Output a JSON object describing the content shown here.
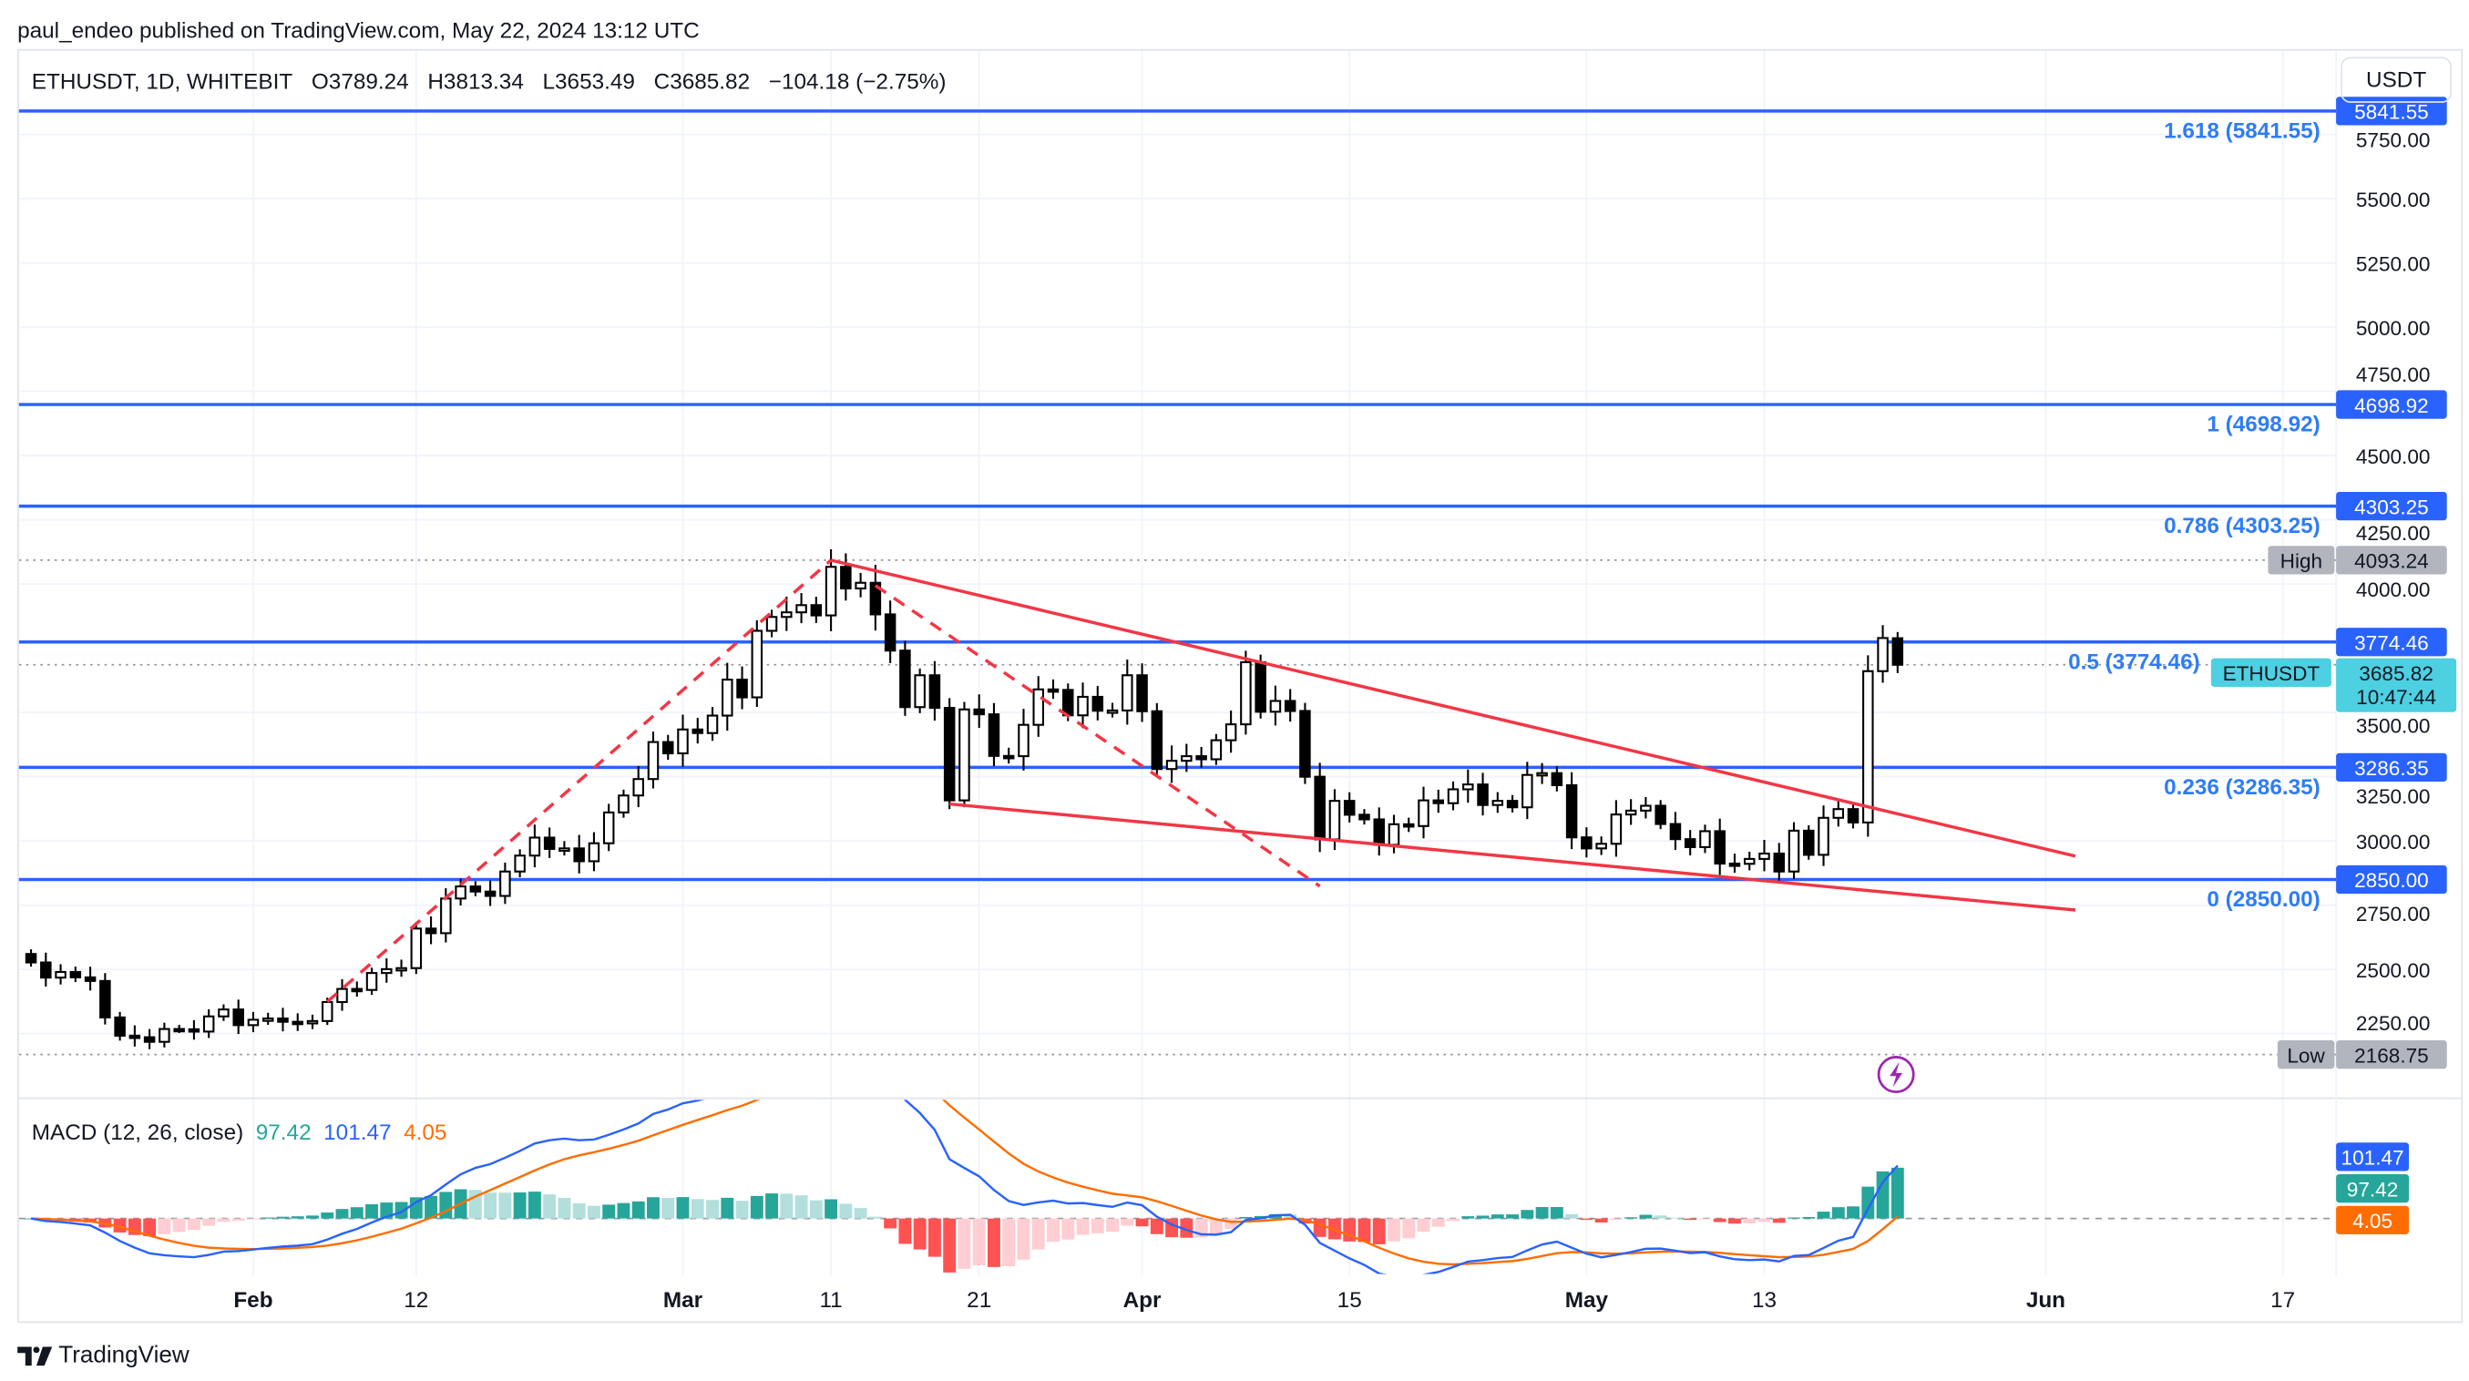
{
  "published": "paul_endeo published on TradingView.com, May 22, 2024 13:12 UTC",
  "legend": {
    "symbol": "ETHUSDT, 1D, WHITEBIT",
    "open": "O3789.24",
    "high": "H3813.34",
    "low": "L3653.49",
    "close": "C3685.82",
    "change": "−104.18 (−2.75%)"
  },
  "currency_button": "USDT",
  "price_axis_ticks": [
    "5750.00",
    "5500.00",
    "5250.00",
    "5000.00",
    "4750.00",
    "4500.00",
    "4250.00",
    "4000.00",
    "3500.00",
    "3250.00",
    "3000.00",
    "2750.00",
    "2500.00",
    "2250.00"
  ],
  "time_axis": [
    {
      "label": "Feb",
      "date": "2024-02-01",
      "bold": true
    },
    {
      "label": "12",
      "date": "2024-02-12",
      "bold": false
    },
    {
      "label": "Mar",
      "date": "2024-03-01",
      "bold": true
    },
    {
      "label": "11",
      "date": "2024-03-11",
      "bold": false
    },
    {
      "label": "21",
      "date": "2024-03-21",
      "bold": false
    },
    {
      "label": "Apr",
      "date": "2024-04-01",
      "bold": true
    },
    {
      "label": "15",
      "date": "2024-04-15",
      "bold": false
    },
    {
      "label": "May",
      "date": "2024-05-01",
      "bold": true
    },
    {
      "label": "13",
      "date": "2024-05-13",
      "bold": false
    },
    {
      "label": "Jun",
      "date": "2024-06-01",
      "bold": true
    },
    {
      "label": "17",
      "date": "2024-06-17",
      "bold": false
    }
  ],
  "fib_levels": [
    {
      "ratio": "1.618",
      "price": 5841.55,
      "label": "1.618 (5841.55)",
      "badge": "5841.55"
    },
    {
      "ratio": "1",
      "price": 4698.92,
      "label": "1 (4698.92)",
      "badge": "4698.92"
    },
    {
      "ratio": "0.786",
      "price": 4303.25,
      "label": "0.786 (4303.25)",
      "badge": "4303.25"
    },
    {
      "ratio": "0.5",
      "price": 3774.46,
      "label": "0.5 (3774.46)",
      "badge": "3774.46"
    },
    {
      "ratio": "0.236",
      "price": 3286.35,
      "label": "0.236 (3286.35)",
      "badge": "3286.35"
    },
    {
      "ratio": "0",
      "price": 2850.0,
      "label": "0 (2850.00)",
      "badge": "2850.00"
    }
  ],
  "high_marker": {
    "label": "High",
    "value": "4093.24",
    "price": 4093.24
  },
  "low_marker": {
    "label": "Low",
    "value": "2168.75",
    "price": 2168.75
  },
  "last_price": {
    "symbol": "ETHUSDT",
    "value": "3685.82",
    "countdown": "10:47:44",
    "price": 3685.82
  },
  "colors": {
    "fib": "#2962ff",
    "fib_text": "#2f7cf6",
    "trendline": "#f23645",
    "last_price": "#4dd0e1",
    "macd_line": "#2962ff",
    "signal_line": "#ff6d00",
    "hist_up": "#26a69a",
    "hist_up_fading": "#b2dfdb",
    "hist_down": "#ff5252",
    "hist_down_fading": "#ffcdd2",
    "marker_gray": "#b2b5be",
    "alert_icon": "#9c27b0"
  },
  "trendlines": [
    {
      "name": "wedge-upper",
      "style": "solid",
      "points": [
        [
          "2024-03-11",
          4093
        ],
        [
          "2024-06-03",
          2941
        ]
      ]
    },
    {
      "name": "wedge-lower",
      "style": "solid",
      "points": [
        [
          "2024-03-19",
          3144
        ],
        [
          "2024-06-03",
          2731
        ]
      ]
    },
    {
      "name": "impulse-up",
      "style": "dashed",
      "points": [
        [
          "2024-02-06",
          2374
        ],
        [
          "2024-03-11",
          4093
        ]
      ]
    },
    {
      "name": "correction-down",
      "style": "dashed",
      "points": [
        [
          "2024-03-14",
          3994
        ],
        [
          "2024-04-13",
          2824
        ]
      ]
    }
  ],
  "macd": {
    "title": "MACD (12, 26, close)",
    "histogram": "97.42",
    "macd": "101.47",
    "signal": "4.05",
    "histogram_value": 97.42,
    "macd_value": 101.47,
    "signal_value": 4.05
  },
  "branding": "TradingView",
  "chart_data": {
    "type": "candlestick",
    "symbol": "ETHUSDT",
    "interval": "1D",
    "exchange": "WHITEBIT",
    "ylim": [
      2150,
      5850
    ],
    "grid": true,
    "last_bar": {
      "date": "2024-05-22",
      "open": 3789.24,
      "high": 3813.34,
      "low": 3653.49,
      "close": 3685.82
    },
    "closes": [
      [
        "2024-01-17",
        2527
      ],
      [
        "2024-01-18",
        2468
      ],
      [
        "2024-01-19",
        2490
      ],
      [
        "2024-01-20",
        2469
      ],
      [
        "2024-01-21",
        2455
      ],
      [
        "2024-01-22",
        2313
      ],
      [
        "2024-01-23",
        2242
      ],
      [
        "2024-01-24",
        2236
      ],
      [
        "2024-01-25",
        2218
      ],
      [
        "2024-01-26",
        2268
      ],
      [
        "2024-01-27",
        2267
      ],
      [
        "2024-01-28",
        2258
      ],
      [
        "2024-01-29",
        2317
      ],
      [
        "2024-01-30",
        2344
      ],
      [
        "2024-01-31",
        2283
      ],
      [
        "2024-02-01",
        2304
      ],
      [
        "2024-02-02",
        2309
      ],
      [
        "2024-02-03",
        2296
      ],
      [
        "2024-02-04",
        2290
      ],
      [
        "2024-02-05",
        2299
      ],
      [
        "2024-02-06",
        2373
      ],
      [
        "2024-02-07",
        2424
      ],
      [
        "2024-02-08",
        2420
      ],
      [
        "2024-02-09",
        2486
      ],
      [
        "2024-02-10",
        2501
      ],
      [
        "2024-02-11",
        2505
      ],
      [
        "2024-02-12",
        2659
      ],
      [
        "2024-02-13",
        2641
      ],
      [
        "2024-02-14",
        2776
      ],
      [
        "2024-02-15",
        2823
      ],
      [
        "2024-02-16",
        2803
      ],
      [
        "2024-02-17",
        2786
      ],
      [
        "2024-02-18",
        2881
      ],
      [
        "2024-02-19",
        2943
      ],
      [
        "2024-02-20",
        3013
      ],
      [
        "2024-02-21",
        2969
      ],
      [
        "2024-02-22",
        2971
      ],
      [
        "2024-02-23",
        2921
      ],
      [
        "2024-02-24",
        2991
      ],
      [
        "2024-02-25",
        3111
      ],
      [
        "2024-02-26",
        3177
      ],
      [
        "2024-02-27",
        3241
      ],
      [
        "2024-02-28",
        3385
      ],
      [
        "2024-02-29",
        3341
      ],
      [
        "2024-03-01",
        3434
      ],
      [
        "2024-03-02",
        3420
      ],
      [
        "2024-03-03",
        3488
      ],
      [
        "2024-03-04",
        3628
      ],
      [
        "2024-03-05",
        3559
      ],
      [
        "2024-03-06",
        3818
      ],
      [
        "2024-03-07",
        3872
      ],
      [
        "2024-03-08",
        3890
      ],
      [
        "2024-03-09",
        3918
      ],
      [
        "2024-03-10",
        3878
      ],
      [
        "2024-03-11",
        4067
      ],
      [
        "2024-03-12",
        3983
      ],
      [
        "2024-03-13",
        4005
      ],
      [
        "2024-03-14",
        3882
      ],
      [
        "2024-03-15",
        3741
      ],
      [
        "2024-03-16",
        3521
      ],
      [
        "2024-03-17",
        3645
      ],
      [
        "2024-03-18",
        3518
      ],
      [
        "2024-03-19",
        3158
      ],
      [
        "2024-03-20",
        3512
      ],
      [
        "2024-03-21",
        3493
      ],
      [
        "2024-03-22",
        3331
      ],
      [
        "2024-03-23",
        3330
      ],
      [
        "2024-03-24",
        3452
      ],
      [
        "2024-03-25",
        3590
      ],
      [
        "2024-03-26",
        3588
      ],
      [
        "2024-03-27",
        3489
      ],
      [
        "2024-03-28",
        3561
      ],
      [
        "2024-03-29",
        3507
      ],
      [
        "2024-03-30",
        3508
      ],
      [
        "2024-03-31",
        3645
      ],
      [
        "2024-04-01",
        3505
      ],
      [
        "2024-04-02",
        3280
      ],
      [
        "2024-04-03",
        3312
      ],
      [
        "2024-04-04",
        3330
      ],
      [
        "2024-04-05",
        3318
      ],
      [
        "2024-04-06",
        3392
      ],
      [
        "2024-04-07",
        3454
      ],
      [
        "2024-04-08",
        3696
      ],
      [
        "2024-04-09",
        3503
      ],
      [
        "2024-04-10",
        3545
      ],
      [
        "2024-04-11",
        3506
      ],
      [
        "2024-04-12",
        3250
      ],
      [
        "2024-04-13",
        3006
      ],
      [
        "2024-04-14",
        3156
      ],
      [
        "2024-04-15",
        3102
      ],
      [
        "2024-04-16",
        3084
      ],
      [
        "2024-04-17",
        2985
      ],
      [
        "2024-04-18",
        3065
      ],
      [
        "2024-04-19",
        3058
      ],
      [
        "2024-04-20",
        3158
      ],
      [
        "2024-04-21",
        3147
      ],
      [
        "2024-04-22",
        3201
      ],
      [
        "2024-04-23",
        3220
      ],
      [
        "2024-04-24",
        3140
      ],
      [
        "2024-04-25",
        3156
      ],
      [
        "2024-04-26",
        3131
      ],
      [
        "2024-04-27",
        3257
      ],
      [
        "2024-04-28",
        3264
      ],
      [
        "2024-04-29",
        3217
      ],
      [
        "2024-04-30",
        3014
      ],
      [
        "2024-05-01",
        2971
      ],
      [
        "2024-05-02",
        2989
      ],
      [
        "2024-05-03",
        3103
      ],
      [
        "2024-05-04",
        3118
      ],
      [
        "2024-05-05",
        3137
      ],
      [
        "2024-05-06",
        3066
      ],
      [
        "2024-05-07",
        3007
      ],
      [
        "2024-05-08",
        2976
      ],
      [
        "2024-05-09",
        3038
      ],
      [
        "2024-05-10",
        2912
      ],
      [
        "2024-05-11",
        2911
      ],
      [
        "2024-05-12",
        2930
      ],
      [
        "2024-05-13",
        2951
      ],
      [
        "2024-05-14",
        2881
      ],
      [
        "2024-05-15",
        3040
      ],
      [
        "2024-05-16",
        2946
      ],
      [
        "2024-05-17",
        3090
      ],
      [
        "2024-05-18",
        3124
      ],
      [
        "2024-05-19",
        3072
      ],
      [
        "2024-05-20",
        3661
      ],
      [
        "2024-05-21",
        3790
      ],
      [
        "2024-05-22",
        3686
      ]
    ]
  }
}
